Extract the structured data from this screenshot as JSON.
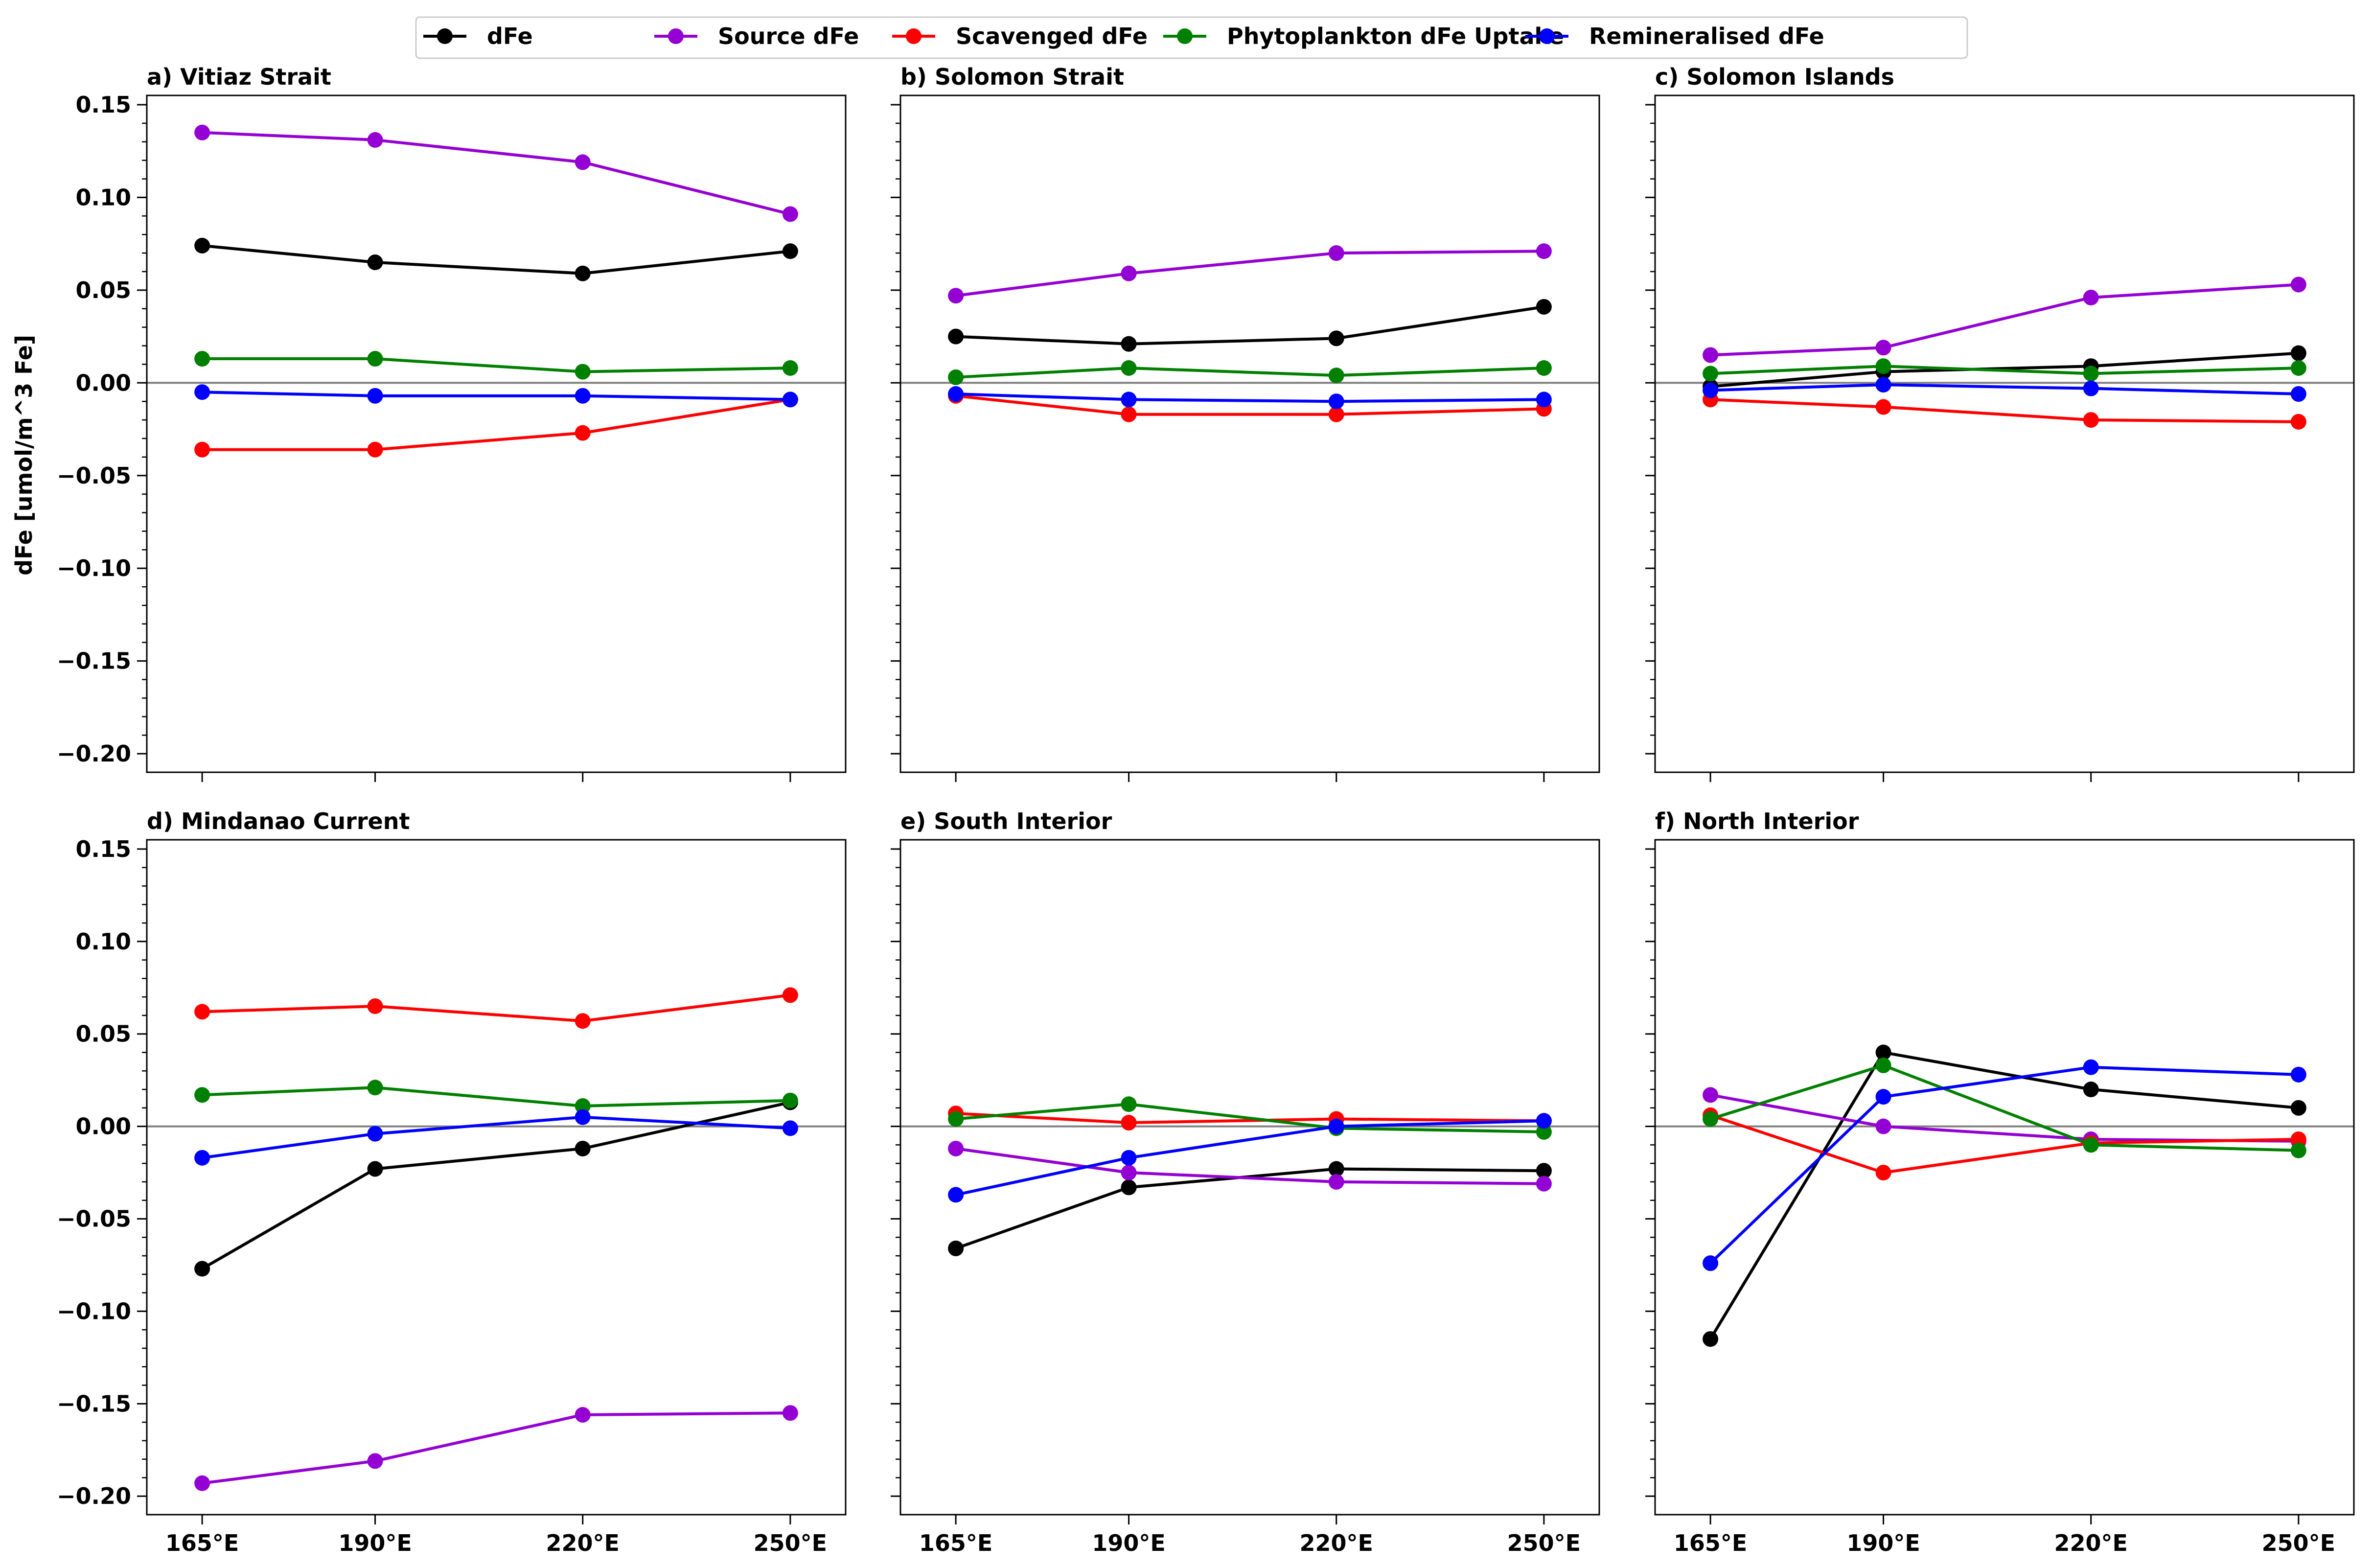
{
  "legend": {
    "position": "top-center",
    "entries": [
      {
        "label": "dFe",
        "color": "#000000"
      },
      {
        "label": "Source dFe",
        "color": "#9400d3"
      },
      {
        "label": "Scavenged dFe",
        "color": "#ff0000"
      },
      {
        "label": "Phytoplankton dFe Uptake",
        "color": "#008000"
      },
      {
        "label": "Remineralised dFe",
        "color": "#0000ff"
      }
    ]
  },
  "shared": {
    "ylabel": "dFe [umol/m^3 Fe]",
    "x_ticks": [
      "165°E",
      "190°E",
      "220°E",
      "250°E"
    ],
    "y_ticks": [
      "0.15",
      "0.10",
      "0.05",
      "0.00",
      "−0.05",
      "−0.10",
      "−0.15",
      "−0.20"
    ],
    "y_tick_values": [
      0.15,
      0.1,
      0.05,
      0.0,
      -0.05,
      -0.1,
      -0.15,
      -0.2
    ],
    "ylim": [
      -0.21,
      0.155
    ],
    "xlim": [
      157,
      258
    ],
    "zero_line": true
  },
  "chart_data": [
    {
      "type": "line",
      "title": "a) Vitiaz Strait",
      "x": [
        165,
        190,
        220,
        250
      ],
      "series": [
        {
          "name": "dFe",
          "color": "#000000",
          "values": [
            0.074,
            0.065,
            0.059,
            0.071
          ]
        },
        {
          "name": "Source dFe",
          "color": "#9400d3",
          "values": [
            0.135,
            0.131,
            0.119,
            0.091
          ]
        },
        {
          "name": "Scavenged dFe",
          "color": "#ff0000",
          "values": [
            -0.036,
            -0.036,
            -0.027,
            -0.009
          ]
        },
        {
          "name": "Phytoplankton dFe Uptake",
          "color": "#008000",
          "values": [
            0.013,
            0.013,
            0.006,
            0.008
          ]
        },
        {
          "name": "Remineralised dFe",
          "color": "#0000ff",
          "values": [
            -0.005,
            -0.007,
            -0.007,
            -0.009
          ]
        }
      ]
    },
    {
      "type": "line",
      "title": "b) Solomon Strait",
      "x": [
        165,
        190,
        220,
        250
      ],
      "series": [
        {
          "name": "dFe",
          "color": "#000000",
          "values": [
            0.025,
            0.021,
            0.024,
            0.041
          ]
        },
        {
          "name": "Source dFe",
          "color": "#9400d3",
          "values": [
            0.047,
            0.059,
            0.07,
            0.071
          ]
        },
        {
          "name": "Scavenged dFe",
          "color": "#ff0000",
          "values": [
            -0.007,
            -0.017,
            -0.017,
            -0.014
          ]
        },
        {
          "name": "Phytoplankton dFe Uptake",
          "color": "#008000",
          "values": [
            0.003,
            0.008,
            0.004,
            0.008
          ]
        },
        {
          "name": "Remineralised dFe",
          "color": "#0000ff",
          "values": [
            -0.006,
            -0.009,
            -0.01,
            -0.009
          ]
        }
      ]
    },
    {
      "type": "line",
      "title": "c) Solomon Islands",
      "x": [
        165,
        190,
        220,
        250
      ],
      "series": [
        {
          "name": "dFe",
          "color": "#000000",
          "values": [
            -0.002,
            0.006,
            0.009,
            0.016
          ]
        },
        {
          "name": "Source dFe",
          "color": "#9400d3",
          "values": [
            0.015,
            0.019,
            0.046,
            0.053
          ]
        },
        {
          "name": "Scavenged dFe",
          "color": "#ff0000",
          "values": [
            -0.009,
            -0.013,
            -0.02,
            -0.021
          ]
        },
        {
          "name": "Phytoplankton dFe Uptake",
          "color": "#008000",
          "values": [
            0.005,
            0.009,
            0.005,
            0.008
          ]
        },
        {
          "name": "Remineralised dFe",
          "color": "#0000ff",
          "values": [
            -0.004,
            -0.001,
            -0.003,
            -0.006
          ]
        }
      ]
    },
    {
      "type": "line",
      "title": "d) Mindanao Current",
      "x": [
        165,
        190,
        220,
        250
      ],
      "series": [
        {
          "name": "dFe",
          "color": "#000000",
          "values": [
            -0.077,
            -0.023,
            -0.012,
            0.013
          ]
        },
        {
          "name": "Source dFe",
          "color": "#9400d3",
          "values": [
            -0.193,
            -0.181,
            -0.156,
            -0.155
          ]
        },
        {
          "name": "Scavenged dFe",
          "color": "#ff0000",
          "values": [
            0.062,
            0.065,
            0.057,
            0.071
          ]
        },
        {
          "name": "Phytoplankton dFe Uptake",
          "color": "#008000",
          "values": [
            0.017,
            0.021,
            0.011,
            0.014
          ]
        },
        {
          "name": "Remineralised dFe",
          "color": "#0000ff",
          "values": [
            -0.017,
            -0.004,
            0.005,
            -0.001
          ]
        }
      ]
    },
    {
      "type": "line",
      "title": "e) South Interior",
      "x": [
        165,
        190,
        220,
        250
      ],
      "series": [
        {
          "name": "dFe",
          "color": "#000000",
          "values": [
            -0.066,
            -0.033,
            -0.023,
            -0.024
          ]
        },
        {
          "name": "Source dFe",
          "color": "#9400d3",
          "values": [
            -0.012,
            -0.025,
            -0.03,
            -0.031
          ]
        },
        {
          "name": "Scavenged dFe",
          "color": "#ff0000",
          "values": [
            0.007,
            0.002,
            0.004,
            0.003
          ]
        },
        {
          "name": "Phytoplankton dFe Uptake",
          "color": "#008000",
          "values": [
            0.004,
            0.012,
            -0.001,
            -0.003
          ]
        },
        {
          "name": "Remineralised dFe",
          "color": "#0000ff",
          "values": [
            -0.037,
            -0.017,
            0.0,
            0.003
          ]
        }
      ]
    },
    {
      "type": "line",
      "title": "f) North Interior",
      "x": [
        165,
        190,
        220,
        250
      ],
      "series": [
        {
          "name": "dFe",
          "color": "#000000",
          "values": [
            -0.115,
            0.04,
            0.02,
            0.01
          ]
        },
        {
          "name": "Source dFe",
          "color": "#9400d3",
          "values": [
            0.017,
            0.0,
            -0.007,
            -0.008
          ]
        },
        {
          "name": "Scavenged dFe",
          "color": "#ff0000",
          "values": [
            0.006,
            -0.025,
            -0.009,
            -0.007
          ]
        },
        {
          "name": "Phytoplankton dFe Uptake",
          "color": "#008000",
          "values": [
            0.004,
            0.033,
            -0.01,
            -0.013
          ]
        },
        {
          "name": "Remineralised dFe",
          "color": "#0000ff",
          "values": [
            -0.074,
            0.016,
            0.032,
            0.028
          ]
        }
      ]
    }
  ]
}
